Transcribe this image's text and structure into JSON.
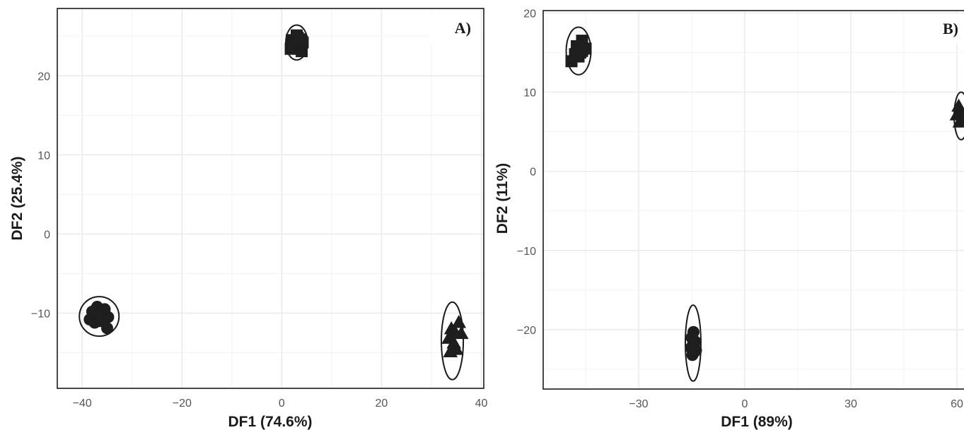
{
  "chart_data": [
    {
      "panel": "A)",
      "type": "scatter",
      "xlabel": "DF1 (74.6%)",
      "ylabel": "DF2 (25.4%)",
      "xlim": [
        -45,
        40.5
      ],
      "ylim": [
        -19.5,
        28.5
      ],
      "x_ticks": [
        -40,
        -20,
        0,
        20,
        40
      ],
      "y_ticks": [
        -10,
        0,
        10,
        20
      ],
      "grid": true,
      "ellipses": true,
      "series": [
        {
          "marker": "circle",
          "x": [
            -37.0,
            -35.5,
            -38.5,
            -36.0,
            -37.5,
            -35.0,
            -36.5,
            -38.0,
            -34.8,
            -37.2
          ],
          "y": [
            -9.2,
            -9.5,
            -10.8,
            -10.2,
            -11.2,
            -11.9,
            -11.0,
            -9.8,
            -10.5,
            -10.0
          ]
        },
        {
          "marker": "square",
          "x": [
            3.0,
            2.0,
            4.2,
            3.6,
            1.8,
            2.8,
            4.0,
            3.2,
            2.4,
            3.8
          ],
          "y": [
            25.1,
            24.5,
            24.2,
            23.7,
            23.4,
            23.9,
            23.1,
            24.8,
            24.1,
            24.6
          ],
          "ellipse": {
            "cx": 3.0,
            "cy": 24.2,
            "rx": 2.2,
            "ry": 2.2
          }
        },
        {
          "marker": "triangle",
          "x": [
            35.5,
            34.0,
            36.0,
            33.5,
            34.5,
            35.0,
            33.8,
            34.8
          ],
          "y": [
            -11.2,
            -12.0,
            -12.6,
            -13.2,
            -13.8,
            -14.6,
            -14.9,
            -12.5
          ],
          "ellipse": {
            "cx": 34.2,
            "cy": -13.5,
            "rx": 2.2,
            "ry": 4.9
          }
        }
      ]
    },
    {
      "panel": "B)",
      "type": "scatter",
      "xlabel": "DF1 (89%)",
      "ylabel": "DF2 (11%)",
      "xlim": [
        -57,
        67
      ],
      "ylim": [
        -27.5,
        20.3
      ],
      "x_ticks": [
        -30,
        0,
        30,
        60
      ],
      "y_ticks": [
        -20,
        -10,
        0,
        10,
        20
      ],
      "grid": true,
      "ellipses": true,
      "series": [
        {
          "marker": "circle",
          "x": [
            -14.5,
            -15.0,
            -14.0,
            -15.2,
            -14.2,
            -14.8,
            -13.8,
            -14.6
          ],
          "y": [
            -20.3,
            -21.0,
            -21.5,
            -22.3,
            -22.8,
            -23.2,
            -22.6,
            -21.8
          ],
          "ellipse": {
            "cx": -14.6,
            "cy": -21.7,
            "rx": 2.2,
            "ry": 4.8
          }
        },
        {
          "marker": "square",
          "x": [
            -46.0,
            -47.5,
            -45.0,
            -48.0,
            -46.5,
            -49.0,
            -47.0,
            -46.0
          ],
          "y": [
            16.5,
            15.8,
            15.5,
            14.8,
            15.0,
            13.9,
            14.5,
            15.2
          ],
          "ellipse": {
            "cx": -47.0,
            "cy": 15.2,
            "rx": 3.5,
            "ry": 3.0
          }
        },
        {
          "marker": "triangle",
          "x": [
            60.5,
            61.2,
            60.0,
            62.0,
            60.8,
            61.5
          ],
          "y": [
            8.2,
            7.6,
            7.1,
            6.5,
            6.2,
            6.8
          ],
          "ellipse": {
            "cx": 61.2,
            "cy": 7.0,
            "rx": 2.0,
            "ry": 3.0
          }
        }
      ]
    }
  ]
}
